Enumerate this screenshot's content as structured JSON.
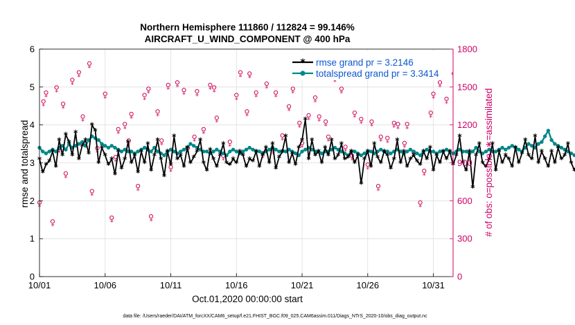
{
  "chart_data": {
    "type": "line",
    "title": "Northern Hemisphere 111860 / 112824 = 99.146%",
    "subtitle": "AIRCRAFT_U_WIND_COMPONENT @ 400 hPa",
    "xlabel": "Oct.01,2020 00:00:00 start",
    "ylabel": "rmse and totalspread",
    "ylabel_right": "# of obs: o=possible; ∗=assimilated",
    "footnote": "data file: /Users/raeder/DAI/ATM_forcXX/CAM6_setup/f.e21.FHIST_BGC.f09_025.CAM6assim.011/Diags_NTrS_2020-10/obs_diag_output.nc",
    "x_ticks": [
      "10/01",
      "10/06",
      "10/11",
      "10/16",
      "10/21",
      "10/26",
      "10/31"
    ],
    "x_tick_days": [
      1,
      6,
      11,
      16,
      21,
      26,
      31
    ],
    "xlim": [
      1,
      32.5
    ],
    "ylim": [
      0,
      6
    ],
    "y_ticks": [
      "0",
      "1",
      "2",
      "3",
      "4",
      "5",
      "6"
    ],
    "y2lim": [
      0,
      1800
    ],
    "y2_ticks": [
      "0",
      "300",
      "600",
      "900",
      "1200",
      "1500",
      "1800"
    ],
    "grid": true,
    "legend_position": "top-right",
    "step_days": 0.25,
    "series": [
      {
        "name": "rmse grand pr = 3.2146",
        "axis": "left",
        "color": "#000000",
        "marker": "asterisk",
        "values": [
          3.1,
          2.75,
          2.95,
          3.05,
          3.3,
          2.9,
          3.6,
          3.2,
          3.75,
          3.55,
          3.2,
          3.8,
          3.1,
          3.45,
          3.6,
          3.25,
          4.0,
          3.85,
          3.0,
          3.4,
          3.2,
          2.95,
          3.1,
          2.7,
          3.3,
          2.85,
          3.1,
          3.55,
          3.0,
          3.2,
          2.75,
          3.3,
          3.0,
          3.5,
          2.8,
          3.2,
          3.6,
          3.1,
          2.65,
          3.3,
          2.95,
          3.7,
          3.1,
          3.2,
          2.9,
          3.4,
          3.0,
          3.15,
          3.3,
          3.6,
          3.0,
          2.8,
          3.35,
          3.1,
          2.9,
          3.2,
          3.5,
          3.0,
          2.95,
          3.1,
          3.0,
          3.3,
          3.2,
          2.9,
          3.1,
          3.05,
          3.3,
          2.9,
          3.2,
          3.4,
          3.0,
          3.5,
          2.85,
          3.15,
          3.3,
          3.7,
          3.0,
          3.25,
          2.95,
          3.4,
          3.6,
          4.15,
          3.1,
          3.6,
          3.2,
          3.3,
          3.0,
          3.4,
          3.2,
          3.6,
          3.1,
          3.2,
          3.5,
          3.1,
          3.15,
          3.3,
          3.0,
          3.2,
          2.45,
          3.1,
          3.3,
          2.9,
          3.5,
          3.15,
          3.0,
          3.3,
          3.2,
          2.85,
          3.1,
          3.6,
          3.0,
          3.3,
          2.9,
          3.1,
          3.2,
          3.05,
          2.95,
          3.3,
          3.1,
          3.4,
          2.8,
          3.2,
          3.0,
          3.3,
          3.1,
          3.3,
          2.95,
          3.2,
          3.7,
          3.0,
          2.8,
          3.3,
          2.35,
          3.2,
          3.5,
          3.0,
          2.9,
          3.1,
          3.5,
          2.8,
          3.3,
          3.0,
          3.2,
          3.1,
          2.9,
          3.4,
          3.0,
          3.25,
          3.6,
          3.2,
          3.1,
          3.7,
          3.0,
          3.3,
          3.1,
          2.9,
          3.3,
          3.0,
          3.4,
          3.1,
          3.2,
          3.5,
          3.0,
          2.8,
          3.0,
          2.55,
          3.1,
          3.2,
          2.9,
          3.1,
          3.3,
          2.6,
          2.85,
          2.75,
          3.0,
          3.2,
          3.0,
          3.85,
          3.3,
          3.1,
          3.5,
          3.0,
          3.4,
          3.2,
          3.3
        ]
      },
      {
        "name": "totalspread grand pr = 3.3414",
        "axis": "left",
        "color": "#00888a",
        "marker": "circle",
        "values": [
          3.4,
          3.3,
          3.25,
          3.3,
          3.35,
          3.3,
          3.4,
          3.45,
          3.35,
          3.5,
          3.4,
          3.45,
          3.5,
          3.55,
          3.45,
          3.6,
          3.7,
          3.65,
          3.6,
          3.5,
          3.45,
          3.4,
          3.45,
          3.4,
          3.35,
          3.3,
          3.35,
          3.3,
          3.3,
          3.25,
          3.3,
          3.35,
          3.4,
          3.35,
          3.3,
          3.4,
          3.3,
          3.25,
          3.2,
          3.3,
          3.35,
          3.3,
          3.25,
          3.3,
          3.35,
          3.4,
          3.5,
          3.45,
          3.4,
          3.35,
          3.3,
          3.3,
          3.25,
          3.3,
          3.35,
          3.3,
          3.25,
          3.2,
          3.3,
          3.35,
          3.3,
          3.25,
          3.3,
          3.35,
          3.4,
          3.35,
          3.3,
          3.3,
          3.25,
          3.3,
          3.35,
          3.4,
          3.35,
          3.3,
          3.3,
          3.3,
          3.35,
          3.3,
          3.25,
          3.2,
          3.3,
          3.35,
          3.4,
          3.35,
          3.3,
          3.3,
          3.25,
          3.3,
          3.3,
          3.35,
          3.4,
          3.35,
          3.3,
          3.25,
          3.2,
          3.3,
          3.3,
          3.25,
          3.2,
          3.25,
          3.3,
          3.3,
          3.25,
          3.3,
          3.35,
          3.3,
          3.3,
          3.25,
          3.3,
          3.35,
          3.3,
          3.25,
          3.3,
          3.35,
          3.3,
          3.25,
          3.2,
          3.3,
          3.35,
          3.3,
          3.3,
          3.25,
          3.3,
          3.3,
          3.35,
          3.3,
          3.25,
          3.3,
          3.35,
          3.3,
          3.3,
          3.25,
          3.3,
          3.4,
          3.3,
          3.25,
          3.3,
          3.35,
          3.3,
          3.3,
          3.35,
          3.4,
          3.35,
          3.4,
          3.45,
          3.4,
          3.35,
          3.3,
          3.4,
          3.5,
          3.45,
          3.4,
          3.5,
          3.55,
          3.7,
          3.85,
          3.6,
          3.5,
          3.45,
          3.4,
          3.35,
          3.3,
          3.25,
          3.2,
          3.3,
          3.35,
          3.3,
          3.25,
          3.2,
          3.25,
          3.3,
          3.2,
          3.25,
          3.3,
          3.35,
          3.3,
          3.5,
          3.45,
          3.35,
          3.3,
          3.4,
          3.45,
          3.35,
          3.3
        ]
      },
      {
        "name": "obs possible",
        "axis": "right",
        "color": "#cc0055",
        "marker": "open-circle",
        "x_days": [
          1.0,
          1.3,
          1.5,
          2.0,
          2.3,
          2.5,
          2.8,
          3.0,
          3.5,
          4.0,
          4.3,
          4.8,
          5.0,
          5.4,
          6.0,
          6.5,
          6.8,
          7.0,
          7.5,
          7.8,
          8.0,
          8.5,
          9.0,
          9.3,
          9.5,
          10.0,
          10.3,
          10.8,
          11.0,
          11.5,
          12.0,
          12.3,
          12.8,
          13.0,
          13.5,
          14.0,
          14.3,
          14.5,
          15.0,
          15.5,
          16.0,
          16.3,
          16.8,
          17.0,
          17.5,
          18.0,
          18.3,
          18.8,
          19.0,
          19.5,
          20.0,
          20.3,
          20.8,
          21.0,
          21.5,
          22.0,
          22.3,
          22.8,
          23.0,
          23.5,
          24.0,
          24.3,
          24.8,
          25.0,
          25.5,
          26.0,
          26.3,
          26.8,
          27.0,
          27.5,
          28.0,
          28.3,
          28.8,
          29.0,
          29.5,
          30.0,
          30.3,
          30.8,
          31.0,
          31.5,
          32.0,
          32.3
        ],
        "values": [
          570,
          1370,
          1440,
          420,
          1480,
          1000,
          1350,
          800,
          1540,
          1600,
          1250,
          1670,
          660,
          1000,
          1430,
          450,
          930,
          1150,
          1190,
          1060,
          1270,
          700,
          1420,
          1470,
          460,
          1290,
          1060,
          1500,
          850,
          1520,
          1460,
          1000,
          1090,
          1450,
          1150,
          1500,
          1480,
          1240,
          940,
          1050,
          1420,
          1600,
          1290,
          1590,
          1440,
          960,
          1510,
          990,
          1440,
          1100,
          1330,
          1470,
          1200,
          1040,
          1260,
          1400,
          1250,
          1210,
          1090,
          1560,
          1470,
          1010,
          940,
          1280,
          1230,
          870,
          1210,
          700,
          1090,
          1080,
          1200,
          1190,
          1040,
          1190,
          970,
          570,
          820,
          1280,
          1430,
          1520,
          1390,
          1590
        ]
      },
      {
        "name": "obs assimilated",
        "axis": "right",
        "color": "#cc0055",
        "marker": "asterisk",
        "x_days": [
          1.0,
          1.3,
          1.5,
          2.0,
          2.3,
          2.5,
          2.8,
          3.0,
          3.5,
          4.0,
          4.3,
          4.8,
          5.0,
          5.4,
          6.0,
          6.5,
          6.8,
          7.0,
          7.5,
          7.8,
          8.0,
          8.5,
          9.0,
          9.3,
          9.5,
          10.0,
          10.3,
          10.8,
          11.0,
          11.5,
          12.0,
          12.3,
          12.8,
          13.0,
          13.5,
          14.0,
          14.3,
          14.5,
          15.0,
          15.5,
          16.0,
          16.3,
          16.8,
          17.0,
          17.5,
          18.0,
          18.3,
          18.8,
          19.0,
          19.5,
          20.0,
          20.3,
          20.8,
          21.0,
          21.5,
          22.0,
          22.3,
          22.8,
          23.0,
          23.5,
          24.0,
          24.3,
          24.8,
          25.0,
          25.5,
          26.0,
          26.3,
          26.8,
          27.0,
          27.5,
          28.0,
          28.3,
          28.8,
          29.0,
          29.5,
          30.0,
          30.3,
          30.8,
          31.0,
          31.5,
          32.0,
          32.3
        ],
        "values": [
          560,
          1360,
          1430,
          410,
          1470,
          990,
          1340,
          790,
          1530,
          1590,
          1240,
          1660,
          650,
          990,
          1420,
          440,
          920,
          1140,
          1180,
          1050,
          1260,
          690,
          1410,
          1460,
          450,
          1280,
          1050,
          1490,
          840,
          1510,
          1450,
          990,
          1080,
          1440,
          1140,
          1490,
          1470,
          1230,
          930,
          1040,
          1410,
          1590,
          1280,
          1580,
          1430,
          950,
          1500,
          980,
          1430,
          1090,
          1320,
          1460,
          1190,
          1030,
          1250,
          1390,
          1240,
          1200,
          1080,
          1550,
          1460,
          1000,
          930,
          1270,
          1220,
          860,
          1200,
          690,
          1080,
          1070,
          1190,
          1180,
          1030,
          1180,
          960,
          560,
          810,
          1270,
          1420,
          1510,
          1380,
          1580
        ]
      }
    ]
  }
}
